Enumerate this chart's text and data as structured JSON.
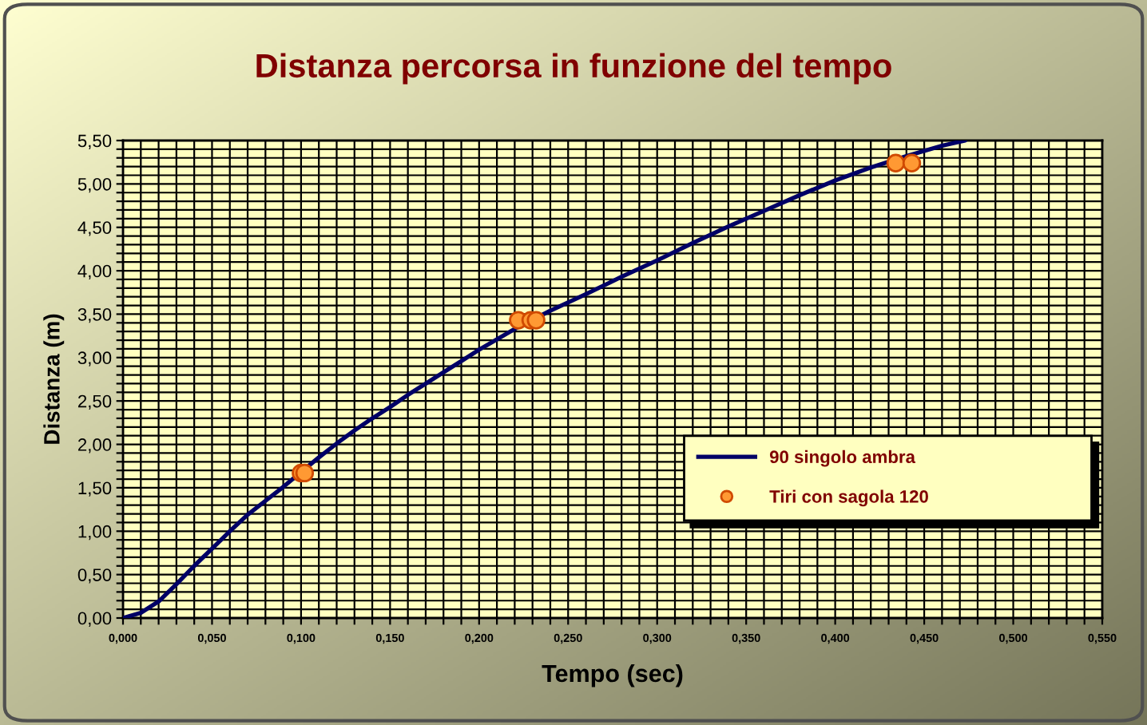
{
  "chart_data": {
    "type": "line",
    "title": "Distanza percorsa in funzione del tempo",
    "xlabel": "Tempo (sec)",
    "ylabel": "Distanza (m)",
    "series": [
      {
        "name": "90 singolo ambra",
        "color": "#000066",
        "marker": "none",
        "line_style": "solid",
        "x": [
          0,
          0.01,
          0.02,
          0.03,
          0.04,
          0.05,
          0.06,
          0.07,
          0.08,
          0.09,
          0.1,
          0.11,
          0.12,
          0.13,
          0.14,
          0.15,
          0.16,
          0.17,
          0.18,
          0.19,
          0.2,
          0.22,
          0.24,
          0.26,
          0.28,
          0.3,
          0.32,
          0.34,
          0.36,
          0.38,
          0.4,
          0.42,
          0.44,
          0.46,
          0.473
        ],
        "values": [
          0,
          0.06,
          0.19,
          0.39,
          0.6,
          0.8,
          1.0,
          1.19,
          1.35,
          1.51,
          1.68,
          1.85,
          2.01,
          2.16,
          2.3,
          2.43,
          2.57,
          2.7,
          2.83,
          2.96,
          3.09,
          3.33,
          3.54,
          3.73,
          3.93,
          4.12,
          4.32,
          4.51,
          4.69,
          4.87,
          5.04,
          5.19,
          5.32,
          5.44,
          5.5
        ]
      },
      {
        "name": "Tiri con sagola 120",
        "type": "scatter",
        "color": "#ff9933",
        "marker": "circle",
        "x": [
          0.1,
          0.102,
          0.222,
          0.229,
          0.232,
          0.434,
          0.443
        ],
        "values": [
          1.67,
          1.67,
          3.43,
          3.43,
          3.43,
          5.24,
          5.24
        ]
      }
    ],
    "xlim": [
      0,
      0.55
    ],
    "ylim": [
      0,
      5.5
    ],
    "xticks": [
      {
        "value": 0,
        "label": "0,000"
      },
      {
        "value": 0.01,
        "label": null
      },
      {
        "value": 0.02,
        "label": null
      },
      {
        "value": 0.03,
        "label": null
      },
      {
        "value": 0.04,
        "label": null
      },
      {
        "value": 0.05,
        "label": "0,050"
      },
      {
        "value": 0.06,
        "label": null
      },
      {
        "value": 0.07,
        "label": null
      },
      {
        "value": 0.08,
        "label": null
      },
      {
        "value": 0.09,
        "label": null
      },
      {
        "value": 0.1,
        "label": "0,100"
      },
      {
        "value": 0.11,
        "label": null
      },
      {
        "value": 0.12,
        "label": null
      },
      {
        "value": 0.13,
        "label": null
      },
      {
        "value": 0.14,
        "label": null
      },
      {
        "value": 0.15,
        "label": "0,150"
      },
      {
        "value": 0.16,
        "label": null
      },
      {
        "value": 0.17,
        "label": null
      },
      {
        "value": 0.18,
        "label": null
      },
      {
        "value": 0.19,
        "label": null
      },
      {
        "value": 0.2,
        "label": "0,200"
      },
      {
        "value": 0.21,
        "label": null
      },
      {
        "value": 0.22,
        "label": null
      },
      {
        "value": 0.23,
        "label": null
      },
      {
        "value": 0.24,
        "label": null
      },
      {
        "value": 0.25,
        "label": "0,250"
      },
      {
        "value": 0.26,
        "label": null
      },
      {
        "value": 0.27,
        "label": null
      },
      {
        "value": 0.28,
        "label": null
      },
      {
        "value": 0.29,
        "label": null
      },
      {
        "value": 0.3,
        "label": "0,300"
      },
      {
        "value": 0.31,
        "label": null
      },
      {
        "value": 0.32,
        "label": null
      },
      {
        "value": 0.33,
        "label": null
      },
      {
        "value": 0.34,
        "label": null
      },
      {
        "value": 0.35,
        "label": "0,350"
      },
      {
        "value": 0.36,
        "label": null
      },
      {
        "value": 0.37,
        "label": null
      },
      {
        "value": 0.38,
        "label": null
      },
      {
        "value": 0.39,
        "label": null
      },
      {
        "value": 0.4,
        "label": "0,400"
      },
      {
        "value": 0.41,
        "label": null
      },
      {
        "value": 0.42,
        "label": null
      },
      {
        "value": 0.43,
        "label": null
      },
      {
        "value": 0.44,
        "label": null
      },
      {
        "value": 0.45,
        "label": "0,450"
      },
      {
        "value": 0.46,
        "label": null
      },
      {
        "value": 0.47,
        "label": null
      },
      {
        "value": 0.48,
        "label": null
      },
      {
        "value": 0.49,
        "label": null
      },
      {
        "value": 0.5,
        "label": "0,500"
      },
      {
        "value": 0.51,
        "label": null
      },
      {
        "value": 0.52,
        "label": null
      },
      {
        "value": 0.53,
        "label": null
      },
      {
        "value": 0.54,
        "label": null
      },
      {
        "value": 0.55,
        "label": "0,550"
      }
    ],
    "yticks": [
      {
        "value": 0,
        "label": "0,00"
      },
      {
        "value": 0.1,
        "label": null
      },
      {
        "value": 0.2,
        "label": null
      },
      {
        "value": 0.3,
        "label": null
      },
      {
        "value": 0.4,
        "label": null
      },
      {
        "value": 0.5,
        "label": "0,50"
      },
      {
        "value": 0.6,
        "label": null
      },
      {
        "value": 0.7,
        "label": null
      },
      {
        "value": 0.8,
        "label": null
      },
      {
        "value": 0.9,
        "label": null
      },
      {
        "value": 1,
        "label": "1,00"
      },
      {
        "value": 1.1,
        "label": null
      },
      {
        "value": 1.2,
        "label": null
      },
      {
        "value": 1.3,
        "label": null
      },
      {
        "value": 1.4,
        "label": null
      },
      {
        "value": 1.5,
        "label": "1,50"
      },
      {
        "value": 1.6,
        "label": null
      },
      {
        "value": 1.7,
        "label": null
      },
      {
        "value": 1.8,
        "label": null
      },
      {
        "value": 1.9,
        "label": null
      },
      {
        "value": 2,
        "label": "2,00"
      },
      {
        "value": 2.1,
        "label": null
      },
      {
        "value": 2.2,
        "label": null
      },
      {
        "value": 2.3,
        "label": null
      },
      {
        "value": 2.4,
        "label": null
      },
      {
        "value": 2.5,
        "label": "2,50"
      },
      {
        "value": 2.6,
        "label": null
      },
      {
        "value": 2.7,
        "label": null
      },
      {
        "value": 2.8,
        "label": null
      },
      {
        "value": 2.9,
        "label": null
      },
      {
        "value": 3,
        "label": "3,00"
      },
      {
        "value": 3.1,
        "label": null
      },
      {
        "value": 3.2,
        "label": null
      },
      {
        "value": 3.3,
        "label": null
      },
      {
        "value": 3.4,
        "label": null
      },
      {
        "value": 3.5,
        "label": "3,50"
      },
      {
        "value": 3.6,
        "label": null
      },
      {
        "value": 3.7,
        "label": null
      },
      {
        "value": 3.8,
        "label": null
      },
      {
        "value": 3.9,
        "label": null
      },
      {
        "value": 4,
        "label": "4,00"
      },
      {
        "value": 4.1,
        "label": null
      },
      {
        "value": 4.2,
        "label": null
      },
      {
        "value": 4.3,
        "label": null
      },
      {
        "value": 4.4,
        "label": null
      },
      {
        "value": 4.5,
        "label": "4,50"
      },
      {
        "value": 4.6,
        "label": null
      },
      {
        "value": 4.7,
        "label": null
      },
      {
        "value": 4.8,
        "label": null
      },
      {
        "value": 4.9,
        "label": null
      },
      {
        "value": 5,
        "label": "5,00"
      },
      {
        "value": 5.1,
        "label": null
      },
      {
        "value": 5.2,
        "label": null
      },
      {
        "value": 5.3,
        "label": null
      },
      {
        "value": 5.4,
        "label": null
      },
      {
        "value": 5.5,
        "label": "5,50"
      }
    ],
    "grid": true,
    "legend": "lower right"
  }
}
